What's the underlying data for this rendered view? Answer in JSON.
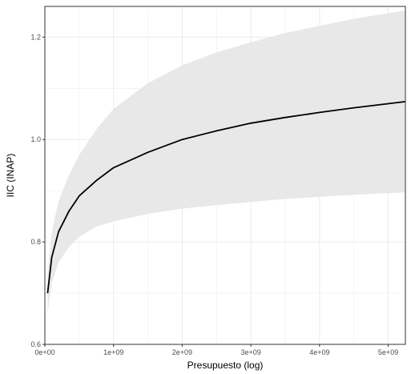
{
  "chart_data": {
    "type": "line",
    "title": "",
    "xlabel": "Presupuesto (log)",
    "ylabel": "IIC (INAP)",
    "xlim": [
      0,
      5250000000
    ],
    "ylim": [
      0.6,
      1.26
    ],
    "x_ticks": [
      {
        "value": 0,
        "label": "0e+00"
      },
      {
        "value": 1000000000,
        "label": "1e+09"
      },
      {
        "value": 2000000000,
        "label": "2e+09"
      },
      {
        "value": 3000000000,
        "label": "3e+09"
      },
      {
        "value": 4000000000,
        "label": "4e+09"
      },
      {
        "value": 5000000000,
        "label": "5e+09"
      }
    ],
    "y_ticks": [
      {
        "value": 0.6,
        "label": "0.6"
      },
      {
        "value": 0.8,
        "label": "0.8"
      },
      {
        "value": 1.0,
        "label": "1.0"
      },
      {
        "value": 1.2,
        "label": "1.2"
      }
    ],
    "grid": true,
    "series": [
      {
        "values": [
          {
            "x": 40000000,
            "y": 0.7,
            "lower": 0.66,
            "upper": 0.74
          },
          {
            "x": 100000000,
            "y": 0.77,
            "lower": 0.72,
            "upper": 0.82
          },
          {
            "x": 200000000,
            "y": 0.82,
            "lower": 0.76,
            "upper": 0.88
          },
          {
            "x": 350000000,
            "y": 0.86,
            "lower": 0.79,
            "upper": 0.93
          },
          {
            "x": 500000000,
            "y": 0.89,
            "lower": 0.81,
            "upper": 0.97
          },
          {
            "x": 750000000,
            "y": 0.92,
            "lower": 0.83,
            "upper": 1.02
          },
          {
            "x": 1000000000,
            "y": 0.945,
            "lower": 0.84,
            "upper": 1.06
          },
          {
            "x": 1500000000,
            "y": 0.975,
            "lower": 0.855,
            "upper": 1.11
          },
          {
            "x": 2000000000,
            "y": 1.0,
            "lower": 0.865,
            "upper": 1.145
          },
          {
            "x": 2500000000,
            "y": 1.017,
            "lower": 0.872,
            "upper": 1.17
          },
          {
            "x": 3000000000,
            "y": 1.032,
            "lower": 0.878,
            "upper": 1.19
          },
          {
            "x": 3500000000,
            "y": 1.043,
            "lower": 0.884,
            "upper": 1.208
          },
          {
            "x": 4000000000,
            "y": 1.053,
            "lower": 0.888,
            "upper": 1.222
          },
          {
            "x": 4500000000,
            "y": 1.062,
            "lower": 0.892,
            "upper": 1.236
          },
          {
            "x": 5250000000,
            "y": 1.074,
            "lower": 0.897,
            "upper": 1.252
          }
        ]
      }
    ],
    "colors": {
      "line": "#000000",
      "ribbon": "#e8e8e8",
      "grid": "#ebebeb",
      "panel_border": "#333333"
    }
  }
}
